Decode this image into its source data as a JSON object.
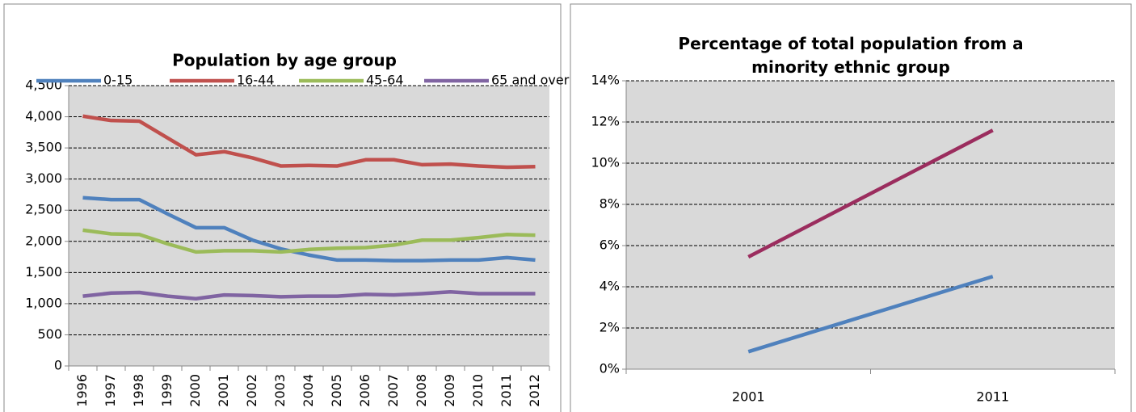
{
  "chart_data": [
    {
      "type": "line",
      "title": "Population by age group",
      "categories": [
        "1996",
        "1997",
        "1998",
        "1999",
        "2000",
        "2001",
        "2002",
        "2003",
        "2004",
        "2005",
        "2006",
        "2007",
        "2008",
        "2009",
        "2010",
        "2011",
        "2012"
      ],
      "series": [
        {
          "name": "0-15",
          "color": "#4f81bd",
          "values": [
            2700,
            2670,
            2670,
            2440,
            2220,
            2220,
            2020,
            1880,
            1780,
            1700,
            1700,
            1690,
            1690,
            1700,
            1700,
            1740,
            1700
          ]
        },
        {
          "name": "16-44",
          "color": "#c0504d",
          "values": [
            4010,
            3940,
            3930,
            3660,
            3390,
            3440,
            3340,
            3210,
            3220,
            3210,
            3310,
            3310,
            3230,
            3240,
            3210,
            3190,
            3200
          ]
        },
        {
          "name": "45-64",
          "color": "#9bbb59",
          "values": [
            2180,
            2120,
            2110,
            1960,
            1830,
            1850,
            1850,
            1830,
            1870,
            1890,
            1900,
            1940,
            2020,
            2020,
            2060,
            2110,
            2100
          ]
        },
        {
          "name": "65 and over",
          "color": "#8064a2",
          "values": [
            1120,
            1170,
            1180,
            1120,
            1080,
            1140,
            1130,
            1110,
            1120,
            1120,
            1150,
            1140,
            1160,
            1190,
            1160,
            1160,
            1160
          ]
        }
      ],
      "ylim": [
        0,
        4500
      ],
      "yticks": [
        0,
        500,
        {
          "value": 1000,
          "label": "1,000"
        },
        {
          "value": 1500,
          "label": "1,500"
        },
        {
          "value": 2000,
          "label": "2,000"
        },
        {
          "value": 2500,
          "label": "2,500"
        },
        {
          "value": 3000,
          "label": "3,000"
        },
        {
          "value": 3500,
          "label": "3,500"
        },
        {
          "value": 4000,
          "label": "4,000"
        },
        {
          "value": 4500,
          "label": "4,500"
        }
      ],
      "grid": true,
      "legend": "top"
    },
    {
      "type": "line",
      "title": "Percentage of total population from a minority ethnic group",
      "categories": [
        "2001",
        "2011"
      ],
      "series": [
        {
          "color": "#4f81bd",
          "values": [
            0.85,
            4.5
          ]
        },
        {
          "color": "#9b2d5e",
          "values": [
            5.45,
            11.6
          ]
        }
      ],
      "ylim": [
        0,
        14
      ],
      "yticks": [
        {
          "value": 0,
          "label": "0%"
        },
        {
          "value": 2,
          "label": "2%"
        },
        {
          "value": 4,
          "label": "4%"
        },
        {
          "value": 6,
          "label": "6%"
        },
        {
          "value": 8,
          "label": "8%"
        },
        {
          "value": 10,
          "label": "10%"
        },
        {
          "value": 12,
          "label": "12%"
        },
        {
          "value": 14,
          "label": "14%"
        }
      ],
      "grid": true
    }
  ]
}
